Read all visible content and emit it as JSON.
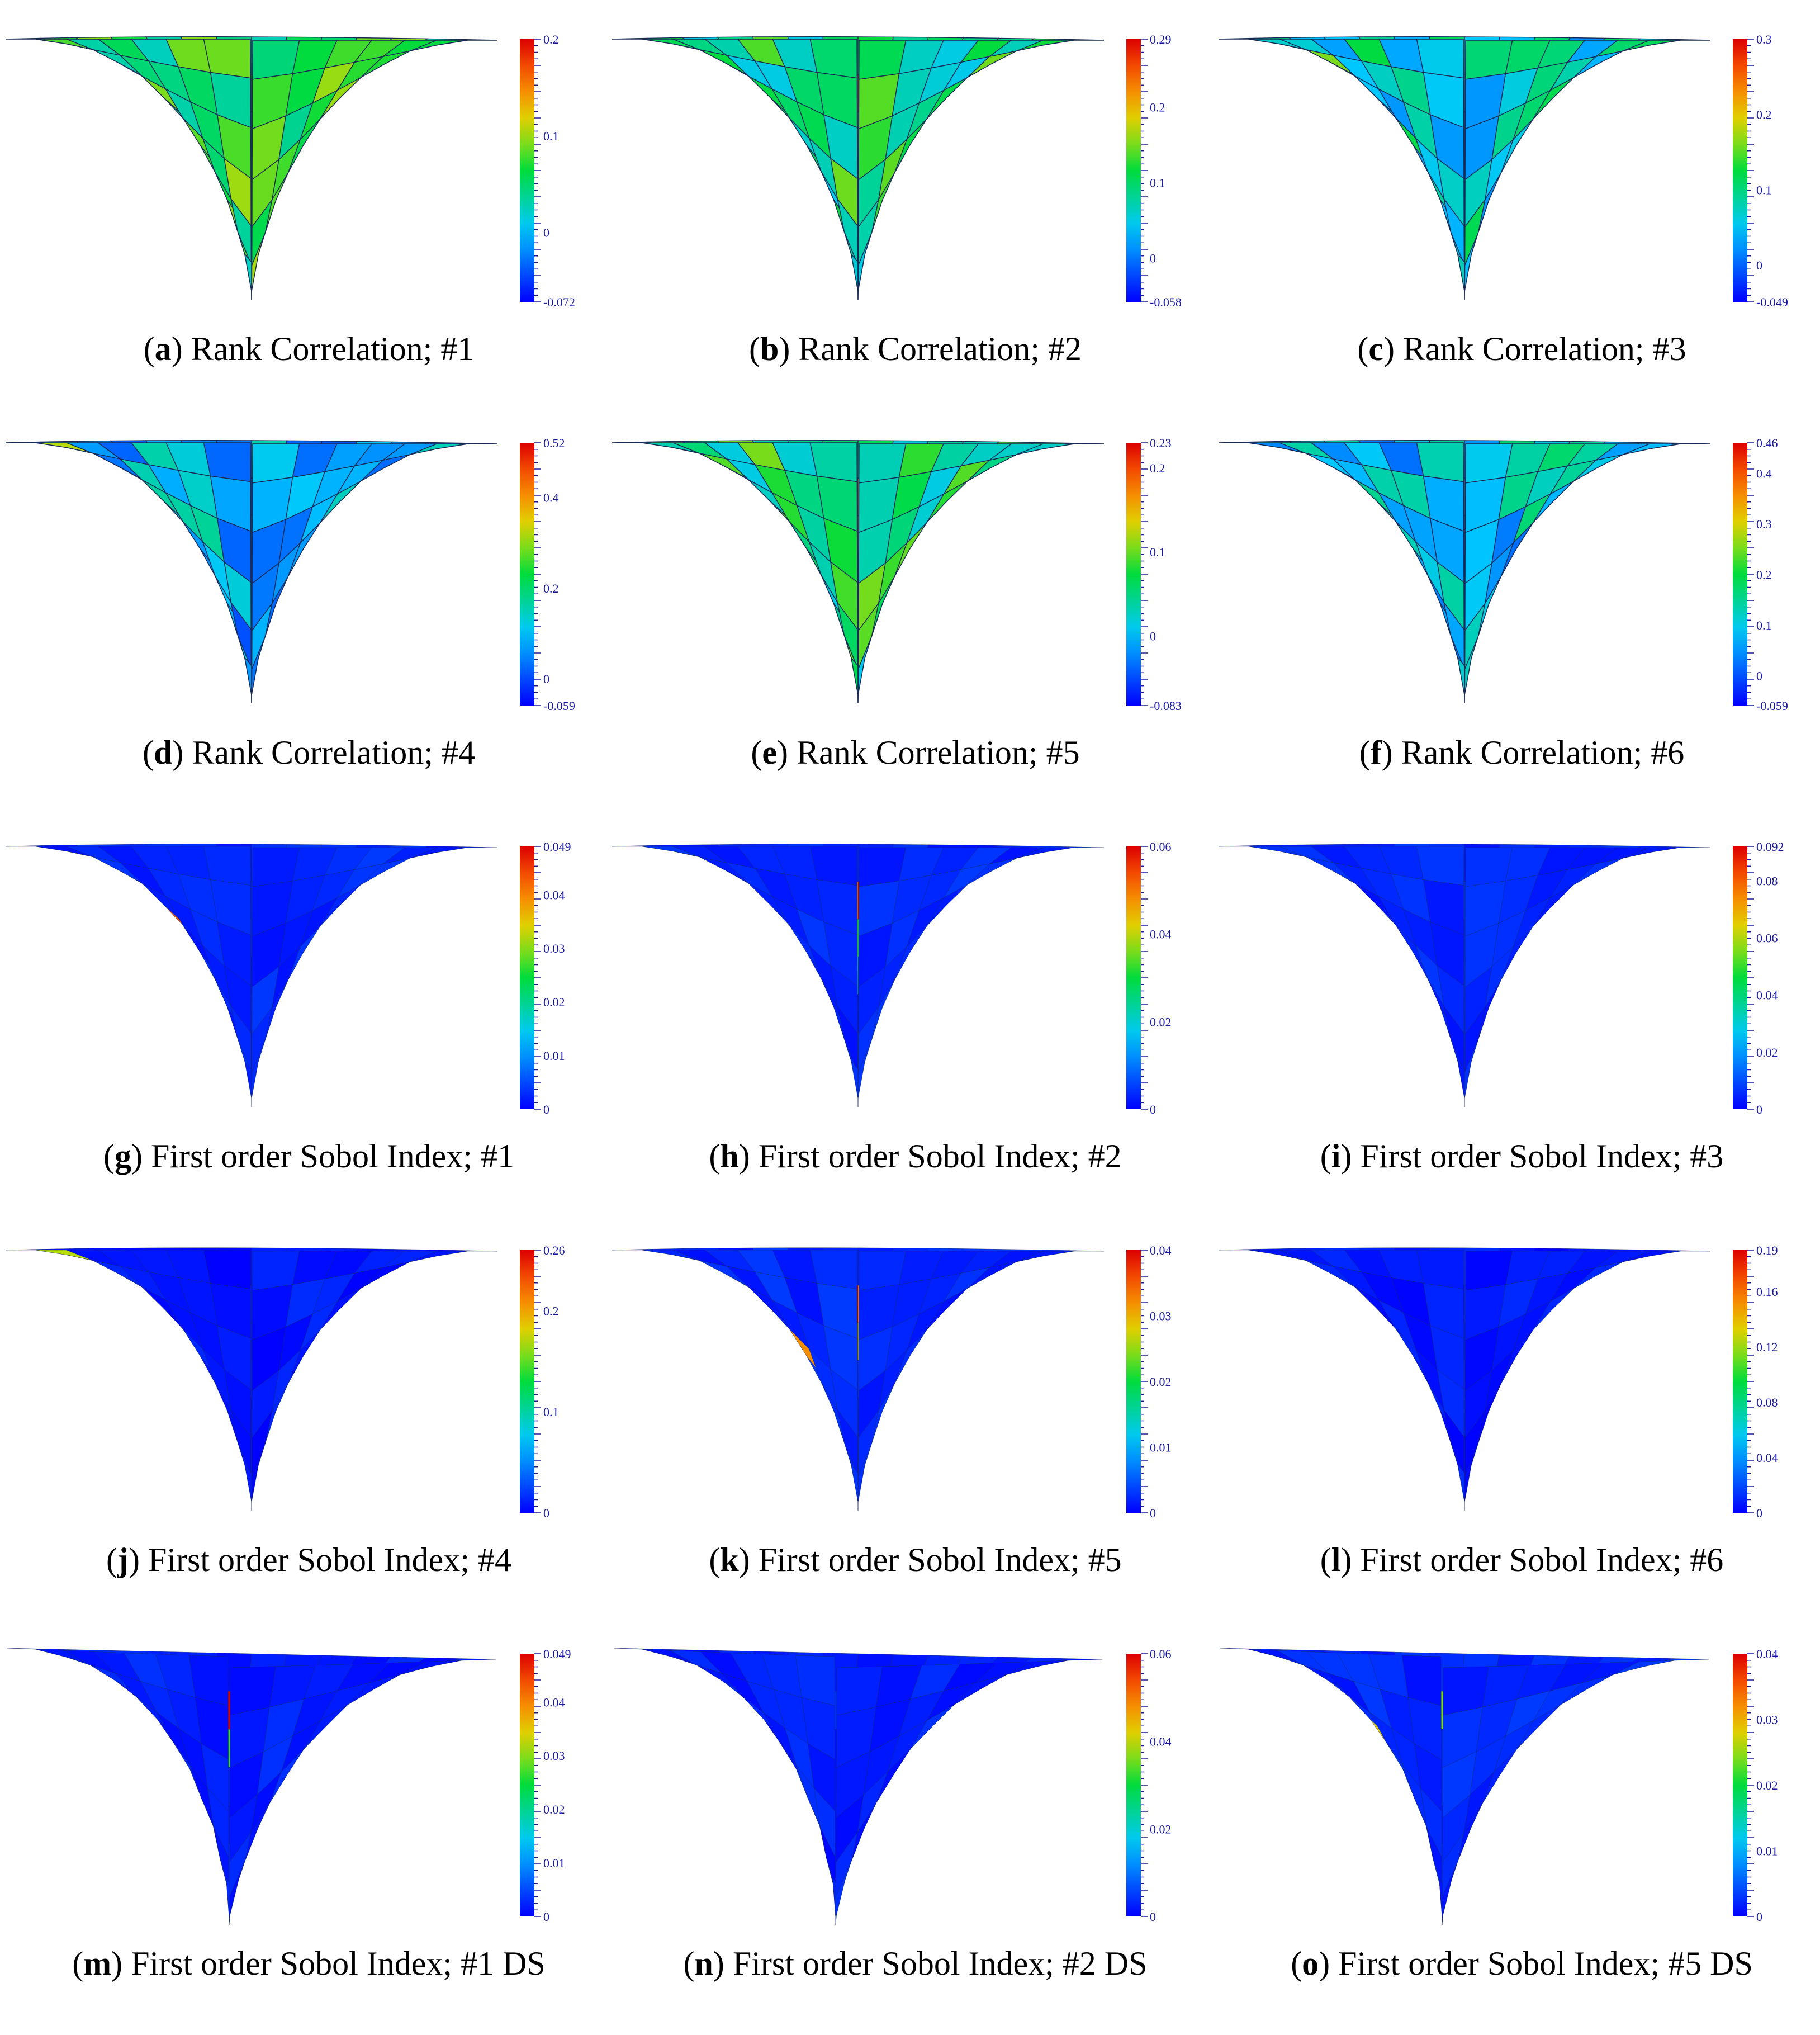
{
  "panels": [
    {
      "letter": "a",
      "title": "Rank Correlation; #1",
      "shape": "A",
      "ticks": [
        "0.2",
        "0.1",
        "0",
        "-0.072"
      ],
      "min": -0.072,
      "max": 0.2,
      "hotspots": [
        [
          1,
          1,
          0.82
        ],
        [
          2,
          1,
          0.62
        ],
        [
          3,
          2,
          1.0
        ],
        [
          4,
          2,
          0.86
        ],
        [
          9,
          1,
          0.92
        ],
        [
          11,
          1,
          0.72
        ],
        [
          2,
          3,
          0.6
        ]
      ],
      "background": 0.5
    },
    {
      "letter": "b",
      "title": "Rank Correlation; #2",
      "shape": "A",
      "ticks": [
        "0.29",
        "0.2",
        "0.1",
        "0",
        "-0.058"
      ],
      "min": -0.058,
      "max": 0.29,
      "hotspots": [
        [
          6,
          1,
          0.82
        ],
        [
          7,
          1,
          0.95
        ],
        [
          6,
          2,
          0.7
        ]
      ],
      "background": 0.45
    },
    {
      "letter": "c",
      "title": "Rank Correlation; #3",
      "shape": "A",
      "ticks": [
        "0.3",
        "0.2",
        "0.1",
        "0",
        "-0.049"
      ],
      "min": -0.049,
      "max": 0.3,
      "hotspots": [
        [
          1,
          1,
          1.0
        ],
        [
          1,
          2,
          0.6
        ]
      ],
      "background": 0.35
    },
    {
      "letter": "d",
      "title": "Rank Correlation; #4",
      "shape": "A",
      "ticks": [
        "0.52",
        "0.4",
        "0.2",
        "0",
        "-0.059"
      ],
      "min": -0.059,
      "max": 0.52,
      "hotspots": [
        [
          1,
          1,
          1.0
        ],
        [
          0,
          1,
          0.65
        ]
      ],
      "background": 0.25
    },
    {
      "letter": "e",
      "title": "Rank Correlation; #5",
      "shape": "A",
      "ticks": [
        "0.23",
        "0.2",
        "0.1",
        "0",
        "-0.083"
      ],
      "min": -0.083,
      "max": 0.23,
      "hotspots": [
        [
          6,
          1,
          1.0
        ],
        [
          5,
          2,
          0.86
        ],
        [
          6,
          2,
          0.78
        ],
        [
          7,
          1,
          0.7
        ],
        [
          7,
          2,
          0.7
        ],
        [
          6,
          3,
          0.75
        ],
        [
          5,
          1,
          0.68
        ]
      ],
      "background": 0.45
    },
    {
      "letter": "f",
      "title": "Rank Correlation; #6",
      "shape": "A",
      "ticks": [
        "0.46",
        "0.4",
        "0.3",
        "0.2",
        "0.1",
        "0",
        "-0.059"
      ],
      "min": -0.059,
      "max": 0.46,
      "hotspots": [
        [
          1,
          1,
          0.55
        ]
      ],
      "background": 0.3
    },
    {
      "letter": "g",
      "title": "First order Sobol Index; #1",
      "shape": "A",
      "ticks": [
        "0.049",
        "0.04",
        "0.03",
        "0.02",
        "0.01",
        "0"
      ],
      "min": 0,
      "max": 0.049,
      "hotspots": [
        [
          1,
          1,
          0.55
        ],
        [
          3,
          3,
          0.88
        ],
        [
          4,
          3,
          0.6
        ],
        [
          9,
          1,
          0.55
        ],
        [
          10,
          1,
          0.4
        ],
        [
          9,
          2,
          0.4
        ]
      ],
      "background": 0.05
    },
    {
      "letter": "h",
      "title": "First order Sobol Index; #2",
      "shape": "A",
      "ticks": [
        "0.06",
        "0.04",
        "0.02",
        "0"
      ],
      "min": 0,
      "max": 0.06,
      "hotspots": [
        [
          6,
          1,
          0.82
        ],
        [
          7,
          1,
          1.0
        ],
        [
          6,
          2,
          0.55
        ],
        [
          7,
          2,
          0.5
        ],
        [
          6,
          3,
          0.4
        ]
      ],
      "background": 0.05
    },
    {
      "letter": "i",
      "title": "First order Sobol Index; #3",
      "shape": "A",
      "ticks": [
        "0.092",
        "0.08",
        "0.06",
        "0.04",
        "0.02",
        "0"
      ],
      "min": 0,
      "max": 0.092,
      "hotspots": [
        [
          1,
          1,
          1.0
        ],
        [
          2,
          1,
          0.45
        ],
        [
          3,
          1,
          0.35
        ]
      ],
      "background": 0.05
    },
    {
      "letter": "j",
      "title": "First order Sobol Index; #4",
      "shape": "A",
      "ticks": [
        "0.26",
        "0.2",
        "0.1",
        "0"
      ],
      "min": 0,
      "max": 0.26,
      "hotspots": [
        [
          1,
          1,
          1.0
        ],
        [
          0,
          1,
          0.65
        ]
      ],
      "background": 0.03
    },
    {
      "letter": "k",
      "title": "First order Sobol Index; #5",
      "shape": "A",
      "ticks": [
        "0.04",
        "0.03",
        "0.02",
        "0.01",
        "0"
      ],
      "min": 0,
      "max": 0.04,
      "hotspots": [
        [
          6,
          1,
          1.0
        ],
        [
          6,
          2,
          0.95
        ],
        [
          7,
          1,
          0.8
        ],
        [
          5,
          1,
          0.55
        ],
        [
          7,
          2,
          0.55
        ],
        [
          5,
          2,
          0.5
        ],
        [
          3,
          4,
          0.8
        ],
        [
          4,
          3,
          0.4
        ]
      ],
      "background": 0.05
    },
    {
      "letter": "l",
      "title": "First order Sobol Index; #6",
      "shape": "A",
      "ticks": [
        "0.19",
        "0.16",
        "0.12",
        "0.08",
        "0.04",
        "0"
      ],
      "min": 0,
      "max": 0.19,
      "hotspots": [
        [
          1,
          1,
          0.4
        ]
      ],
      "background": 0.03
    },
    {
      "letter": "m",
      "title": "First order Sobol Index; #1 DS",
      "shape": "B",
      "ticks": [
        "0.049",
        "0.04",
        "0.03",
        "0.02",
        "0.01",
        "0"
      ],
      "min": 0,
      "max": 0.049,
      "hotspots": [
        [
          6,
          1,
          1.0
        ],
        [
          7,
          1,
          0.95
        ],
        [
          6,
          2,
          0.55
        ],
        [
          7,
          2,
          0.55
        ],
        [
          3,
          2,
          0.5
        ],
        [
          9,
          2,
          0.45
        ],
        [
          10,
          1,
          0.55
        ]
      ],
      "background": 0.04
    },
    {
      "letter": "n",
      "title": "First order Sobol Index; #2 DS",
      "shape": "B",
      "ticks": [
        "0.06",
        "0.04",
        "0.02",
        "0"
      ],
      "min": 0,
      "max": 0.06,
      "hotspots": [
        [
          4,
          1,
          0.55
        ],
        [
          9,
          1,
          0.7
        ],
        [
          10,
          1,
          0.85
        ],
        [
          9,
          2,
          0.55
        ]
      ],
      "background": 0.04
    },
    {
      "letter": "o",
      "title": "First order Sobol Index; #5 DS",
      "shape": "B",
      "ticks": [
        "0.04",
        "0.03",
        "0.02",
        "0.01",
        "0"
      ],
      "min": 0,
      "max": 0.04,
      "hotspots": [
        [
          5,
          1,
          0.5
        ],
        [
          6,
          1,
          0.6
        ],
        [
          7,
          1,
          0.7
        ],
        [
          8,
          1,
          0.75
        ],
        [
          9,
          1,
          0.85
        ],
        [
          3,
          3,
          0.7
        ],
        [
          9,
          3,
          0.85
        ],
        [
          10,
          3,
          0.9
        ]
      ],
      "background": 0.05
    }
  ],
  "colors": {
    "low": "#0000ff",
    "high": "#ff0000",
    "mesh_line": "#1a2a55",
    "tick": "#1a1aa0"
  }
}
